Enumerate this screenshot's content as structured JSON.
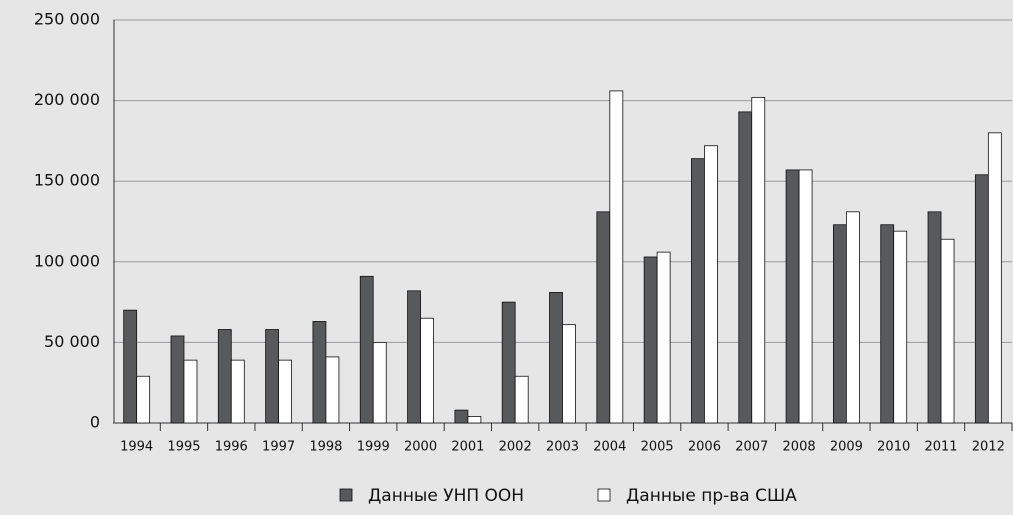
{
  "chart_data": {
    "type": "bar",
    "categories": [
      "1994",
      "1995",
      "1996",
      "1997",
      "1998",
      "1999",
      "2000",
      "2001",
      "2002",
      "2003",
      "2004",
      "2005",
      "2006",
      "2007",
      "2008",
      "2009",
      "2010",
      "2011",
      "2012"
    ],
    "series": [
      {
        "name": "Данные УНП ООН",
        "color": "#58595b",
        "values": [
          70000,
          54000,
          58000,
          58000,
          63000,
          91000,
          82000,
          8000,
          75000,
          81000,
          131000,
          103000,
          164000,
          193000,
          157000,
          123000,
          123000,
          131000,
          154000
        ]
      },
      {
        "name": "Данные пр-ва США",
        "color": "#ffffff",
        "values": [
          29000,
          39000,
          39000,
          39000,
          41000,
          50000,
          65000,
          4000,
          29000,
          61000,
          206000,
          106000,
          172000,
          202000,
          157000,
          131000,
          119000,
          114000,
          180000
        ]
      }
    ],
    "ylim": [
      0,
      250000
    ],
    "yticks": [
      {
        "value": 0,
        "label": "0"
      },
      {
        "value": 50000,
        "label": "50 000"
      },
      {
        "value": 100000,
        "label": "100 000"
      },
      {
        "value": 150000,
        "label": "150 000"
      },
      {
        "value": 200000,
        "label": "200 000"
      },
      {
        "value": 250000,
        "label": "250 000"
      }
    ],
    "grid": true,
    "legend": "bottom"
  }
}
